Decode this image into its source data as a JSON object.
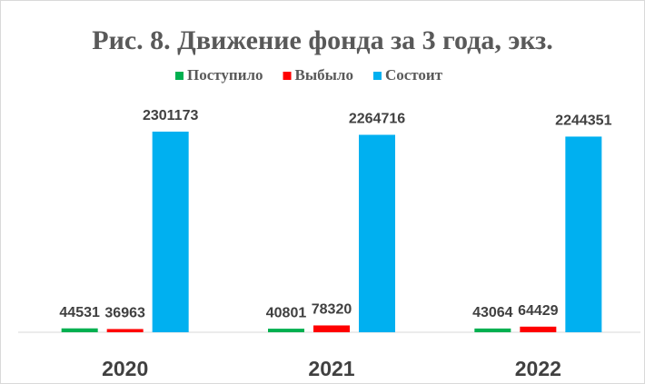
{
  "chart_data": {
    "type": "bar",
    "title": "Рис. 8. Движение фонда за 3 года, экз.",
    "categories": [
      "2020",
      "2021",
      "2022"
    ],
    "series": [
      {
        "name": "Поступило",
        "color": "#00b050",
        "values": [
          44531,
          40801,
          43064
        ]
      },
      {
        "name": "Выбыло",
        "color": "#ff0000",
        "values": [
          36963,
          78320,
          64429
        ]
      },
      {
        "name": "Состоит",
        "color": "#00b0f0",
        "values": [
          2301173,
          2264716,
          2244351
        ]
      }
    ],
    "legend": "top"
  }
}
